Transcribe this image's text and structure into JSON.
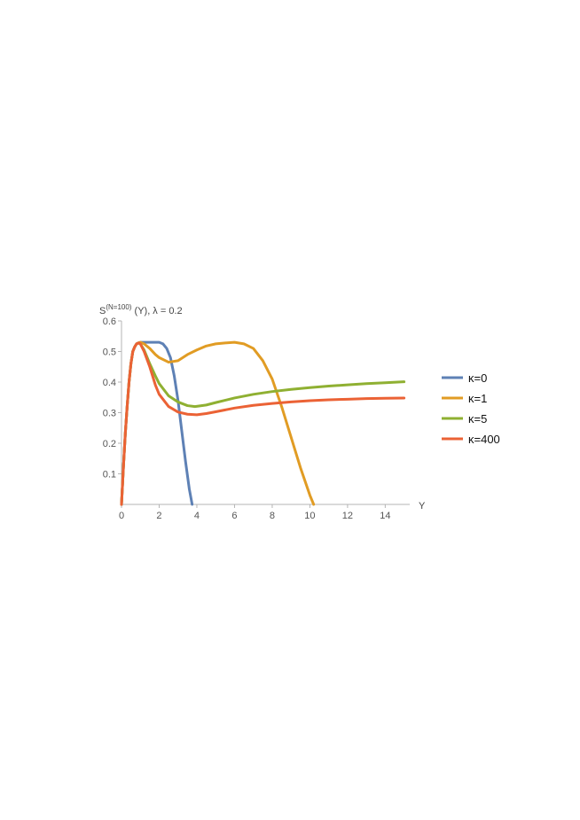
{
  "chart_data": {
    "type": "line",
    "title": "",
    "ylabel_prefix": "S",
    "ylabel_sup": "(N=100)",
    "ylabel_suffix": " (Y), λ = 0.2",
    "xlabel": "Y",
    "xlim": [
      0,
      15.3
    ],
    "ylim": [
      0,
      0.6
    ],
    "xticks": [
      0,
      2,
      4,
      6,
      8,
      10,
      12,
      14
    ],
    "yticks": [
      0.1,
      0.2,
      0.3,
      0.4,
      0.5,
      0.6
    ],
    "xtick_labels": [
      "0",
      "2",
      "4",
      "6",
      "8",
      "10",
      "12",
      "14"
    ],
    "ytick_labels": [
      "0.1",
      "0.2",
      "0.3",
      "0.4",
      "0.5",
      "0.6"
    ],
    "legend_position": "right",
    "series": [
      {
        "name": "κ=0",
        "color": "#5e81b5",
        "x": [
          0,
          0.1,
          0.2,
          0.3,
          0.4,
          0.5,
          0.6,
          0.7,
          0.8,
          0.9,
          1.0,
          1.2,
          1.5,
          1.8,
          2.0,
          2.2,
          2.4,
          2.6,
          2.8,
          3.0,
          3.2,
          3.4,
          3.6,
          3.75
        ],
        "y": [
          0,
          0.12,
          0.23,
          0.32,
          0.4,
          0.46,
          0.5,
          0.515,
          0.525,
          0.528,
          0.53,
          0.53,
          0.53,
          0.53,
          0.53,
          0.525,
          0.51,
          0.48,
          0.42,
          0.34,
          0.24,
          0.14,
          0.05,
          0.0
        ]
      },
      {
        "name": "κ=1",
        "color": "#e19c24",
        "x": [
          0,
          0.1,
          0.2,
          0.3,
          0.4,
          0.5,
          0.6,
          0.7,
          0.8,
          0.9,
          1.0,
          1.2,
          1.5,
          1.8,
          2.0,
          2.5,
          3.0,
          3.5,
          4.0,
          4.5,
          5.0,
          5.5,
          6.0,
          6.5,
          7.0,
          7.5,
          8.0,
          8.5,
          9.0,
          9.5,
          10.0,
          10.2
        ],
        "y": [
          0,
          0.12,
          0.23,
          0.32,
          0.4,
          0.46,
          0.5,
          0.515,
          0.525,
          0.528,
          0.53,
          0.525,
          0.51,
          0.49,
          0.48,
          0.465,
          0.47,
          0.49,
          0.505,
          0.518,
          0.525,
          0.528,
          0.53,
          0.525,
          0.51,
          0.47,
          0.41,
          0.32,
          0.22,
          0.12,
          0.03,
          0.0
        ]
      },
      {
        "name": "κ=5",
        "color": "#8fb032",
        "x": [
          0,
          0.1,
          0.2,
          0.3,
          0.4,
          0.5,
          0.6,
          0.7,
          0.8,
          0.9,
          1.0,
          1.2,
          1.5,
          1.8,
          2.0,
          2.5,
          3.0,
          3.5,
          3.9,
          4.5,
          5.0,
          6.0,
          7.0,
          8.0,
          9.0,
          10.0,
          11.0,
          12.0,
          13.0,
          14.0,
          15.0
        ],
        "y": [
          0,
          0.12,
          0.23,
          0.32,
          0.4,
          0.46,
          0.5,
          0.515,
          0.525,
          0.528,
          0.525,
          0.505,
          0.46,
          0.42,
          0.395,
          0.355,
          0.335,
          0.323,
          0.32,
          0.325,
          0.333,
          0.348,
          0.36,
          0.369,
          0.376,
          0.382,
          0.387,
          0.391,
          0.395,
          0.398,
          0.401
        ]
      },
      {
        "name": "κ=400",
        "color": "#eb6235",
        "x": [
          0,
          0.1,
          0.2,
          0.3,
          0.4,
          0.5,
          0.6,
          0.7,
          0.8,
          0.9,
          1.0,
          1.2,
          1.5,
          1.8,
          2.0,
          2.5,
          3.0,
          3.5,
          4.0,
          4.5,
          5.0,
          6.0,
          7.0,
          8.0,
          9.0,
          10.0,
          11.0,
          12.0,
          13.0,
          14.0,
          15.0
        ],
        "y": [
          0,
          0.12,
          0.23,
          0.32,
          0.4,
          0.46,
          0.5,
          0.515,
          0.525,
          0.528,
          0.525,
          0.5,
          0.45,
          0.39,
          0.36,
          0.32,
          0.302,
          0.295,
          0.293,
          0.297,
          0.303,
          0.315,
          0.324,
          0.33,
          0.335,
          0.339,
          0.342,
          0.344,
          0.346,
          0.347,
          0.348
        ]
      }
    ]
  }
}
